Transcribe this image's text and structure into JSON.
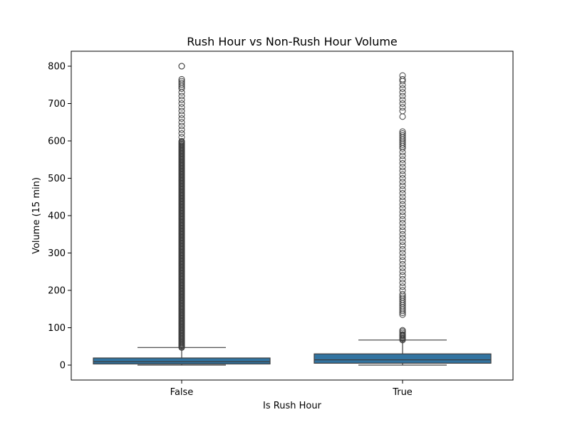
{
  "chart_data": {
    "type": "box",
    "title": "Rush Hour vs Non-Rush Hour Volume",
    "xlabel": "Is Rush Hour",
    "ylabel": "Volume (15 min)",
    "categories": [
      "False",
      "True"
    ],
    "ylim": [
      -40,
      840
    ],
    "yticks": [
      0,
      100,
      200,
      300,
      400,
      500,
      600,
      700,
      800
    ],
    "box_color": "#3274a1",
    "line_color": "#3d3d3d",
    "boxes": [
      {
        "category": "False",
        "whisker_low": 0,
        "q1": 3,
        "median": 9,
        "q3": 19,
        "whisker_high": 47,
        "outlier_range": [
          47,
          600
        ],
        "outliers": [
          610,
          620,
          630,
          640,
          650,
          660,
          670,
          680,
          690,
          700,
          710,
          720,
          730,
          740,
          745,
          750,
          755,
          760,
          765,
          800,
          800
        ]
      },
      {
        "category": "True",
        "whisker_low": 0,
        "q1": 5,
        "median": 14,
        "q3": 30,
        "whisker_high": 67,
        "outliers": [
          67,
          70,
          72,
          75,
          78,
          80,
          82,
          86,
          90,
          93,
          135,
          140,
          145,
          150,
          155,
          160,
          165,
          170,
          175,
          180,
          185,
          190,
          200,
          210,
          220,
          230,
          240,
          250,
          260,
          270,
          280,
          290,
          300,
          310,
          320,
          330,
          340,
          350,
          360,
          370,
          380,
          390,
          400,
          410,
          420,
          430,
          440,
          450,
          460,
          470,
          480,
          490,
          500,
          510,
          520,
          530,
          540,
          550,
          560,
          570,
          580,
          585,
          590,
          595,
          600,
          605,
          610,
          615,
          620,
          625,
          665,
          680,
          690,
          700,
          710,
          720,
          730,
          740,
          750,
          760,
          765,
          775
        ]
      }
    ]
  }
}
